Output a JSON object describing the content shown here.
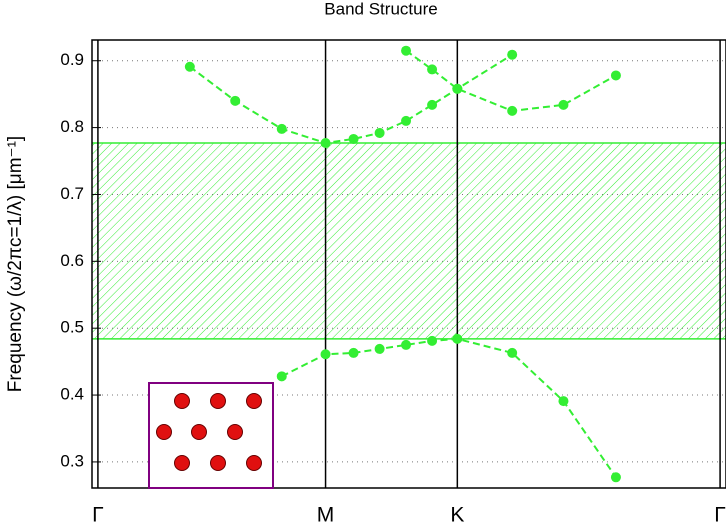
{
  "chart_data": {
    "type": "line",
    "title": "Band Structure",
    "ylabel": "Frequency (ω/2πc=1/λ) [μm⁻¹]",
    "xlim": [
      -0.015,
      1.592
    ],
    "ylim": [
      0.261,
      0.931
    ],
    "xticks": [
      {
        "value": 0,
        "label": "Γ"
      },
      {
        "value": 0.577,
        "label": "M"
      },
      {
        "value": 0.911,
        "label": "K"
      },
      {
        "value": 1.577,
        "label": "Γ"
      }
    ],
    "yticks": [
      0.3,
      0.4,
      0.5,
      0.6,
      0.7,
      0.8,
      0.9
    ],
    "grid": true,
    "band_gap": [
      0.484,
      0.777
    ],
    "band_gap_color": "#33ee33",
    "series": [
      {
        "color": "#33ee33",
        "x": [
          0.466,
          0.577,
          0.648,
          0.714,
          0.781,
          0.847,
          0.911,
          1.05,
          1.18,
          1.313
        ],
        "values": [
          0.428,
          0.461,
          0.463,
          0.469,
          0.475,
          0.481,
          0.484,
          0.463,
          0.391,
          0.277
        ]
      },
      {
        "color": "#33ee33",
        "x": [
          0.233,
          0.348,
          0.466,
          0.577,
          0.648,
          0.714,
          0.781,
          0.847,
          0.911,
          1.05
        ],
        "values": [
          0.891,
          0.84,
          0.798,
          0.777,
          0.783,
          0.792,
          0.81,
          0.834,
          0.858,
          0.909
        ]
      },
      {
        "color": "#33ee33",
        "x": [
          0.781,
          0.847,
          0.911,
          1.05,
          1.18,
          1.313
        ],
        "values": [
          0.915,
          0.887,
          0.858,
          0.825,
          0.834,
          0.878
        ]
      }
    ]
  }
}
